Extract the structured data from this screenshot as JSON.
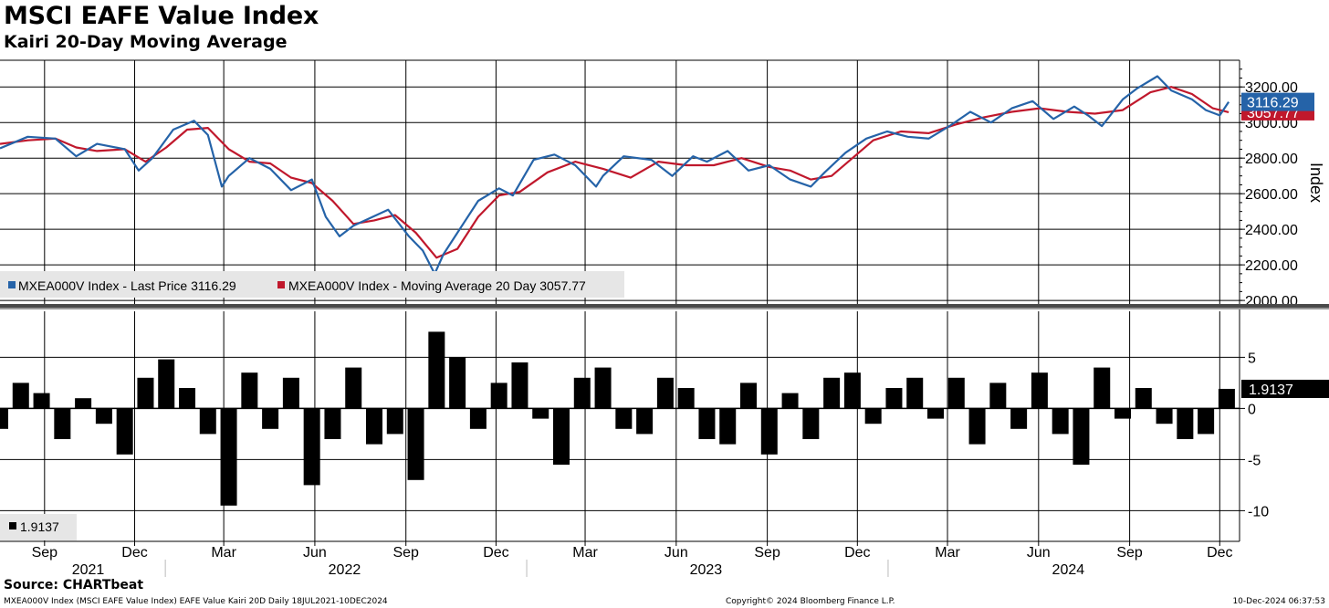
{
  "title": "MSCI EAFE Value Index",
  "subtitle": "Kairi 20-Day Moving Average",
  "source": "Source: CHARTbeat",
  "footer": {
    "left": "MXEA000V Index (MSCI EAFE Value Index) EAFE Value Kairi 20D  Daily 18JUL2021-10DEC2024",
    "center": "Copyright© 2024 Bloomberg Finance L.P.",
    "right": "10-Dec-2024 06:37:53"
  },
  "colors": {
    "price": "#2563a8",
    "ma": "#c0182c",
    "kairi": "#000000",
    "grid": "#000000"
  },
  "chart_data": [
    {
      "type": "line",
      "panel": "upper",
      "ylabel": "Index",
      "ylim": [
        1980,
        3350
      ],
      "yticks": [
        "3200.00",
        "3000.00",
        "2800.00",
        "2600.00",
        "2400.00",
        "2200.00",
        "2000.00"
      ],
      "legend": [
        "MXEA000V Index - Last Price 3116.29",
        "MXEA000V Index - Moving Average 20 Day 3057.77"
      ],
      "last_labels": {
        "price": "3116.29",
        "ma": "3057.77"
      },
      "series": [
        {
          "key": "price",
          "x": [
            "2021-07-18",
            "2021-08-15",
            "2021-09-12",
            "2021-10-03",
            "2021-10-24",
            "2021-11-21",
            "2021-12-05",
            "2021-12-19",
            "2022-01-09",
            "2022-01-30",
            "2022-02-13",
            "2022-02-27",
            "2022-03-06",
            "2022-03-27",
            "2022-04-17",
            "2022-05-08",
            "2022-05-29",
            "2022-06-12",
            "2022-06-26",
            "2022-07-10",
            "2022-08-14",
            "2022-09-04",
            "2022-09-18",
            "2022-09-30",
            "2022-10-09",
            "2022-10-23",
            "2022-11-13",
            "2022-12-04",
            "2022-12-18",
            "2023-01-08",
            "2023-01-29",
            "2023-02-19",
            "2023-03-12",
            "2023-03-19",
            "2023-04-09",
            "2023-05-07",
            "2023-05-28",
            "2023-06-18",
            "2023-07-02",
            "2023-07-23",
            "2023-08-13",
            "2023-09-03",
            "2023-09-24",
            "2023-10-15",
            "2023-10-29",
            "2023-11-19",
            "2023-12-10",
            "2023-12-31",
            "2024-01-21",
            "2024-02-11",
            "2024-03-03",
            "2024-03-24",
            "2024-04-14",
            "2024-05-05",
            "2024-05-26",
            "2024-06-16",
            "2024-07-07",
            "2024-07-21",
            "2024-08-04",
            "2024-08-25",
            "2024-09-08",
            "2024-09-29",
            "2024-10-13",
            "2024-11-03",
            "2024-11-17",
            "2024-12-01",
            "2024-12-10"
          ],
          "values": [
            2855,
            2920,
            2910,
            2810,
            2880,
            2850,
            2730,
            2800,
            2960,
            3010,
            2930,
            2640,
            2700,
            2800,
            2740,
            2620,
            2680,
            2470,
            2360,
            2420,
            2510,
            2360,
            2280,
            2150,
            2260,
            2380,
            2560,
            2630,
            2590,
            2790,
            2820,
            2760,
            2640,
            2700,
            2810,
            2790,
            2700,
            2810,
            2780,
            2840,
            2730,
            2760,
            2680,
            2640,
            2720,
            2830,
            2910,
            2950,
            2920,
            2910,
            2980,
            3060,
            3000,
            3080,
            3120,
            3020,
            3090,
            3040,
            2980,
            3130,
            3190,
            3260,
            3180,
            3130,
            3070,
            3040,
            3116
          ]
        },
        {
          "key": "ma",
          "x": [
            "2021-07-18",
            "2021-08-15",
            "2021-09-12",
            "2021-10-03",
            "2021-10-24",
            "2021-11-21",
            "2021-12-12",
            "2022-01-02",
            "2022-01-23",
            "2022-02-13",
            "2022-03-06",
            "2022-03-27",
            "2022-04-17",
            "2022-05-08",
            "2022-05-29",
            "2022-06-19",
            "2022-07-10",
            "2022-07-31",
            "2022-08-21",
            "2022-09-11",
            "2022-10-02",
            "2022-10-23",
            "2022-11-13",
            "2022-12-04",
            "2022-12-25",
            "2023-01-22",
            "2023-02-19",
            "2023-03-19",
            "2023-04-16",
            "2023-05-14",
            "2023-06-11",
            "2023-07-09",
            "2023-08-06",
            "2023-09-03",
            "2023-09-24",
            "2023-10-15",
            "2023-11-05",
            "2023-11-26",
            "2023-12-17",
            "2024-01-14",
            "2024-02-11",
            "2024-03-10",
            "2024-04-07",
            "2024-05-05",
            "2024-06-02",
            "2024-06-30",
            "2024-07-28",
            "2024-08-25",
            "2024-09-22",
            "2024-10-13",
            "2024-11-03",
            "2024-11-24",
            "2024-12-10"
          ],
          "values": [
            2880,
            2900,
            2910,
            2860,
            2840,
            2850,
            2780,
            2860,
            2960,
            2970,
            2850,
            2780,
            2770,
            2690,
            2660,
            2560,
            2430,
            2450,
            2480,
            2380,
            2240,
            2290,
            2470,
            2590,
            2610,
            2720,
            2780,
            2740,
            2690,
            2780,
            2760,
            2760,
            2800,
            2750,
            2730,
            2680,
            2700,
            2800,
            2900,
            2950,
            2940,
            2990,
            3030,
            3060,
            3080,
            3060,
            3050,
            3070,
            3170,
            3200,
            3160,
            3080,
            3058
          ]
        }
      ]
    },
    {
      "type": "bar",
      "panel": "lower",
      "ylim": [
        -13,
        9.5
      ],
      "yticks": [
        "5",
        "0",
        "-5",
        "-10"
      ],
      "legend": [
        "1.9137"
      ],
      "last_label": "1.9137",
      "x": [
        "2021-07-18",
        "2021-08-08",
        "2021-08-29",
        "2021-09-19",
        "2021-10-10",
        "2021-10-31",
        "2021-11-21",
        "2021-12-12",
        "2022-01-02",
        "2022-01-23",
        "2022-02-13",
        "2022-03-06",
        "2022-03-27",
        "2022-04-17",
        "2022-05-08",
        "2022-05-29",
        "2022-06-19",
        "2022-07-10",
        "2022-07-31",
        "2022-08-21",
        "2022-09-11",
        "2022-10-02",
        "2022-10-23",
        "2022-11-13",
        "2022-12-04",
        "2022-12-25",
        "2023-01-15",
        "2023-02-05",
        "2023-02-26",
        "2023-03-19",
        "2023-04-09",
        "2023-04-30",
        "2023-05-21",
        "2023-06-11",
        "2023-07-02",
        "2023-07-23",
        "2023-08-13",
        "2023-09-03",
        "2023-09-24",
        "2023-10-15",
        "2023-11-05",
        "2023-11-26",
        "2023-12-17",
        "2024-01-07",
        "2024-01-28",
        "2024-02-18",
        "2024-03-10",
        "2024-03-31",
        "2024-04-21",
        "2024-05-12",
        "2024-06-02",
        "2024-06-23",
        "2024-07-14",
        "2024-08-04",
        "2024-08-25",
        "2024-09-15",
        "2024-10-06",
        "2024-10-27",
        "2024-11-17",
        "2024-12-08"
      ],
      "values": [
        -2,
        2.5,
        1.5,
        -3,
        1,
        -1.5,
        -4.5,
        3,
        4.8,
        2,
        -2.5,
        -9.5,
        3.5,
        -2,
        3,
        -7.5,
        -3,
        4,
        -3.5,
        -2.5,
        -7,
        7.5,
        5,
        -2,
        2.5,
        4.5,
        -1,
        -5.5,
        3,
        4,
        -2,
        -2.5,
        3,
        2,
        -3,
        -3.5,
        2.5,
        -4.5,
        1.5,
        -3,
        3,
        3.5,
        -1.5,
        2,
        3,
        -1,
        3,
        -3.5,
        2.5,
        -2,
        3.5,
        -2.5,
        -5.5,
        4,
        -1,
        2,
        -1.5,
        -3,
        -2.5,
        1.9137
      ]
    }
  ],
  "x_axis": {
    "months": [
      {
        "date": "2021-09-01",
        "label": "Sep"
      },
      {
        "date": "2021-12-01",
        "label": "Dec"
      },
      {
        "date": "2022-03-01",
        "label": "Mar"
      },
      {
        "date": "2022-06-01",
        "label": "Jun"
      },
      {
        "date": "2022-09-01",
        "label": "Sep"
      },
      {
        "date": "2022-12-01",
        "label": "Dec"
      },
      {
        "date": "2023-03-01",
        "label": "Mar"
      },
      {
        "date": "2023-06-01",
        "label": "Jun"
      },
      {
        "date": "2023-09-01",
        "label": "Sep"
      },
      {
        "date": "2023-12-01",
        "label": "Dec"
      },
      {
        "date": "2024-03-01",
        "label": "Mar"
      },
      {
        "date": "2024-06-01",
        "label": "Jun"
      },
      {
        "date": "2024-09-01",
        "label": "Sep"
      },
      {
        "date": "2024-12-01",
        "label": "Dec"
      }
    ],
    "years": [
      {
        "date": "2021-10-15",
        "label": "2021"
      },
      {
        "date": "2022-07-01",
        "label": "2022"
      },
      {
        "date": "2023-07-01",
        "label": "2023"
      },
      {
        "date": "2024-07-01",
        "label": "2024"
      }
    ],
    "year_dividers": [
      "2022-01-01",
      "2023-01-01",
      "2024-01-01"
    ],
    "range": [
      "2021-07-18",
      "2024-12-21"
    ]
  }
}
